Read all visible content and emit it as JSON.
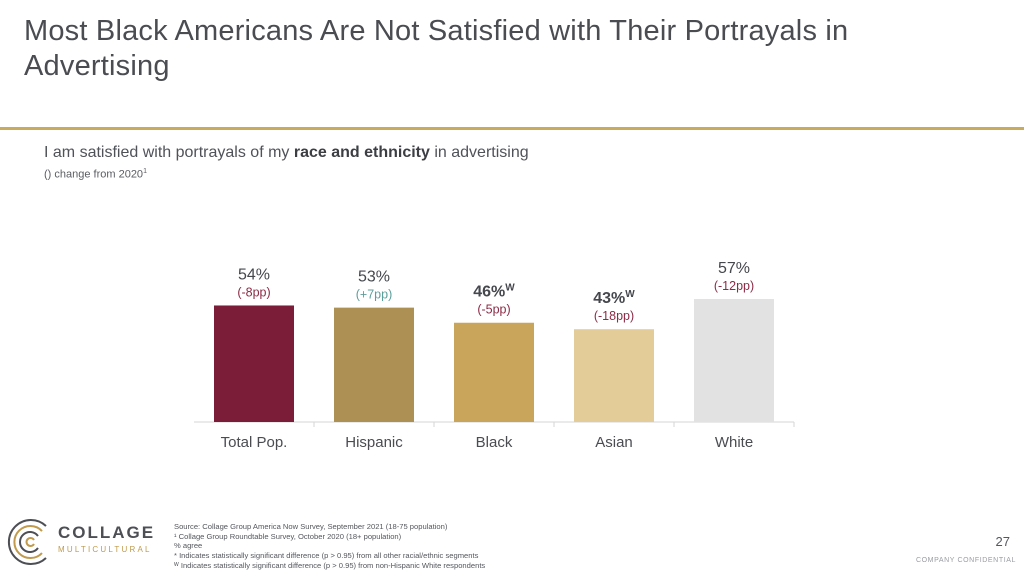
{
  "title": "Most Black Americans Are Not Satisfied with Their Portrayals in Advertising",
  "question": {
    "prefix": "I am satisfied with portrayals of my ",
    "bold": "race and ethnicity",
    "suffix": " in advertising"
  },
  "note": {
    "text": "() change from 2020",
    "sup": "1"
  },
  "chart_data": {
    "type": "bar",
    "categories": [
      "Total Pop.",
      "Hispanic",
      "Black",
      "Asian",
      "White"
    ],
    "values": [
      54,
      53,
      46,
      43,
      57
    ],
    "value_labels": [
      "54%",
      "53%",
      "46%",
      "43%",
      "57%"
    ],
    "superscripts": [
      "",
      "",
      "W",
      "W",
      ""
    ],
    "bold": [
      false,
      false,
      true,
      true,
      false
    ],
    "changes": [
      "(-8pp)",
      "(+7pp)",
      "(-5pp)",
      "(-18pp)",
      "(-12pp)"
    ],
    "change_colors": [
      "#8b2b46",
      "#5b9f9b",
      "#8b2b46",
      "#8b2b46",
      "#8b2b46"
    ],
    "colors": [
      "#7b1d39",
      "#ac9054",
      "#c9a55c",
      "#e4cc98",
      "#e2e2e2"
    ],
    "ylim": [
      0,
      70
    ],
    "grid": false
  },
  "logo": {
    "line1": "COLLAGE",
    "line2": "MULTICULTURAL"
  },
  "footnotes": [
    "Source: Collage Group America Now Survey, September 2021 (18-75 population)",
    "¹ Collage Group Roundtable Survey, October 2020 (18+ population)",
    "% agree",
    "* Indicates statistically significant difference (p > 0.95) from all other racial/ethnic segments",
    "ᵂ Indicates statistically significant difference (p > 0.95) from non-Hispanic White respondents"
  ],
  "page_number": "27",
  "confidential": "COMPANY CONFIDENTIAL",
  "colors": {
    "accent": "#c9ab5e",
    "title": "#4a4c52"
  }
}
